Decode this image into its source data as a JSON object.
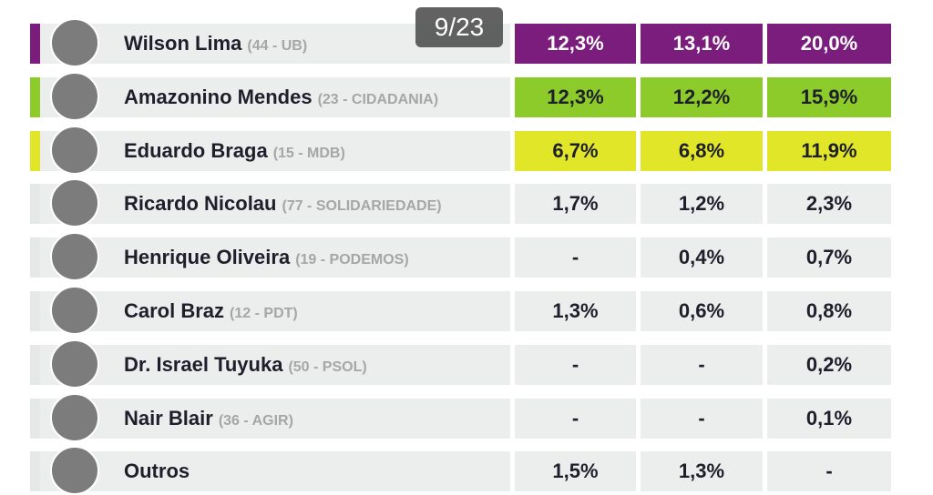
{
  "counter": "9/23",
  "rows": [
    {
      "name": "Wilson Lima",
      "party": "(44 - UB)",
      "values": [
        "12,3%",
        "13,1%",
        "20,0%"
      ],
      "color": "#7a1d7d"
    },
    {
      "name": "Amazonino Mendes",
      "party": "(23 - CIDADANIA)",
      "values": [
        "12,3%",
        "12,2%",
        "15,9%"
      ],
      "color": "#8dcb2b"
    },
    {
      "name": "Eduardo Braga",
      "party": "(15 - MDB)",
      "values": [
        "6,7%",
        "6,8%",
        "11,9%"
      ],
      "color": "#e2e629"
    },
    {
      "name": "Ricardo Nicolau",
      "party": "(77 - SOLIDARIEDADE)",
      "values": [
        "1,7%",
        "1,2%",
        "2,3%"
      ]
    },
    {
      "name": "Henrique Oliveira",
      "party": "(19 - PODEMOS)",
      "values": [
        "-",
        "0,4%",
        "0,7%"
      ]
    },
    {
      "name": "Carol Braz",
      "party": "(12 - PDT)",
      "values": [
        "1,3%",
        "0,6%",
        "0,8%"
      ]
    },
    {
      "name": "Dr. Israel Tuyuka",
      "party": "(50 - PSOL)",
      "values": [
        "-",
        "-",
        "0,2%"
      ]
    },
    {
      "name": "Nair Blair",
      "party": "(36 - AGIR)",
      "values": [
        "-",
        "-",
        "0,1%"
      ]
    },
    {
      "name": "Outros",
      "values": [
        "1,5%",
        "1,3%",
        "-"
      ]
    }
  ]
}
